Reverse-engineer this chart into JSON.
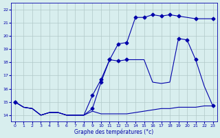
{
  "xlabel": "Graphe des températures (°c)",
  "bg_color": "#d8eeee",
  "line_color": "#0000aa",
  "grid_color": "#b0c8c8",
  "xlim": [
    -0.5,
    23.5
  ],
  "ylim": [
    13.5,
    22.5
  ],
  "xticks": [
    0,
    1,
    2,
    3,
    4,
    5,
    6,
    7,
    8,
    9,
    10,
    11,
    12,
    13,
    14,
    15,
    16,
    17,
    18,
    19,
    20,
    21,
    22,
    23
  ],
  "yticks": [
    14,
    15,
    16,
    17,
    18,
    19,
    20,
    21,
    22
  ],
  "series1_x": [
    0,
    1,
    2,
    3,
    4,
    5,
    6,
    7,
    8,
    9,
    10,
    11,
    12,
    13,
    14,
    15,
    16,
    17,
    18,
    19,
    20,
    21,
    22,
    23
  ],
  "series1_y": [
    15.0,
    14.6,
    14.5,
    14.0,
    14.2,
    14.2,
    14.0,
    14.0,
    14.0,
    14.3,
    14.1,
    14.1,
    14.1,
    14.1,
    14.2,
    14.3,
    14.4,
    14.5,
    14.5,
    14.6,
    14.6,
    14.6,
    14.7,
    14.7
  ],
  "series2_x": [
    0,
    1,
    2,
    3,
    4,
    5,
    6,
    7,
    8,
    9,
    10,
    11,
    12,
    13,
    14,
    15,
    16,
    17,
    18,
    19,
    20,
    21,
    22,
    23
  ],
  "series2_y": [
    15.0,
    14.6,
    14.5,
    14.0,
    14.2,
    14.2,
    14.0,
    14.0,
    14.0,
    14.5,
    16.5,
    18.2,
    18.1,
    18.2,
    18.2,
    18.2,
    16.5,
    16.4,
    16.5,
    19.8,
    19.7,
    18.2,
    16.2,
    14.7
  ],
  "series2_markers_x": [
    0,
    9,
    10,
    11,
    12,
    13,
    19,
    20,
    21,
    23
  ],
  "series2_markers_y": [
    15.0,
    14.5,
    16.5,
    18.2,
    18.1,
    18.2,
    19.8,
    19.7,
    18.2,
    14.7
  ],
  "series3_x": [
    0,
    1,
    2,
    3,
    4,
    5,
    6,
    7,
    8,
    9,
    10,
    11,
    12,
    13,
    14,
    15,
    16,
    17,
    18,
    19,
    20,
    21,
    22,
    23
  ],
  "series3_y": [
    15.0,
    14.6,
    14.5,
    14.0,
    14.2,
    14.2,
    14.0,
    14.0,
    14.0,
    15.5,
    16.7,
    18.2,
    19.4,
    19.5,
    21.4,
    21.4,
    21.6,
    21.5,
    21.6,
    21.5,
    21.4,
    21.3,
    21.3,
    21.3
  ],
  "series3_markers_x": [
    0,
    9,
    10,
    11,
    12,
    13,
    14,
    15,
    16,
    17,
    18,
    19,
    21,
    23
  ],
  "series3_markers_y": [
    15.0,
    15.5,
    16.7,
    18.2,
    19.4,
    19.5,
    21.4,
    21.4,
    21.6,
    21.5,
    21.6,
    21.5,
    21.3,
    21.3
  ]
}
